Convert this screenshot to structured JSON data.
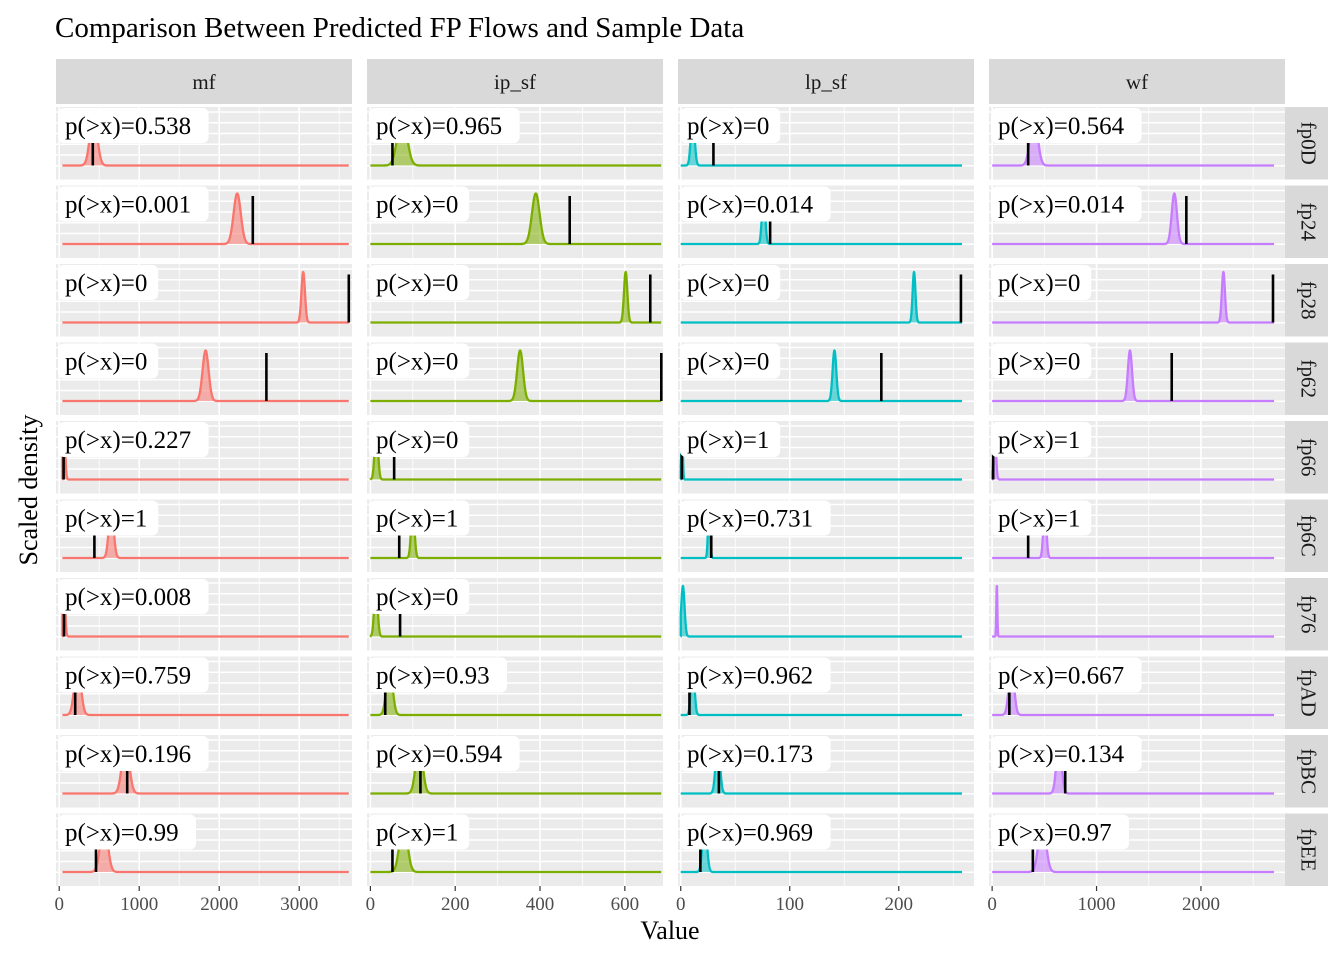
{
  "chart_data": {
    "type": "area",
    "title": "Comparison Between Predicted FP Flows and Sample Data",
    "xlabel": "Value",
    "ylabel": "Scaled density",
    "grid": true,
    "colors": {
      "mf": "#F8766D",
      "ip_sf": "#7CAE00",
      "lp_sf": "#00BFC4",
      "wf": "#C77CFF"
    },
    "columns": [
      {
        "key": "mf",
        "label": "mf",
        "xlim": [
          -40,
          3660
        ],
        "ticks": [
          0,
          1000,
          2000,
          3000
        ],
        "tick_labels": [
          "0",
          "1000",
          "2000",
          "3000"
        ],
        "baseline_start": 40
      },
      {
        "key": "ip_sf",
        "label": "ip_sf",
        "xlim": [
          -8,
          690
        ],
        "ticks": [
          0,
          200,
          400,
          600
        ],
        "tick_labels": [
          "0",
          "200",
          "400",
          "600"
        ],
        "baseline_start": 0
      },
      {
        "key": "lp_sf",
        "label": "lp_sf",
        "xlim": [
          -2.5,
          269
        ],
        "ticks": [
          0,
          100,
          200
        ],
        "tick_labels": [
          "0",
          "100",
          "200"
        ],
        "baseline_start": 0
      },
      {
        "key": "wf",
        "label": "wf",
        "xlim": [
          -30,
          2805
        ],
        "ticks": [
          0,
          1000,
          2000
        ],
        "tick_labels": [
          "0",
          "1000",
          "2000"
        ],
        "baseline_start": 0
      }
    ],
    "rows": [
      "fp0D",
      "fp24",
      "fp28",
      "fp62",
      "fp66",
      "fp6C",
      "fp76",
      "fpAD",
      "fpBC",
      "fpEE"
    ],
    "panels": [
      [
        {
          "mean": 430,
          "sd": 45,
          "obs": 420,
          "p_label": "p(>x)=0.538",
          "x_end": 3620
        },
        {
          "mean": 2225,
          "sd": 45,
          "obs": 2420,
          "p_label": "p(>x)=0.001",
          "x_end": 3620
        },
        {
          "mean": 3050,
          "sd": 22,
          "obs": 3620,
          "p_label": "p(>x)=0",
          "x_end": 3620
        },
        {
          "mean": 1830,
          "sd": 38,
          "obs": 2590,
          "p_label": "p(>x)=0",
          "x_end": 3620
        },
        {
          "mean": 60,
          "sd": 15,
          "obs": 55,
          "p_label": "p(>x)=0.227",
          "x_end": 3620
        },
        {
          "mean": 650,
          "sd": 30,
          "obs": 440,
          "p_label": "p(>x)=1",
          "x_end": 3620
        },
        {
          "mean": 60,
          "sd": 15,
          "obs": 60,
          "p_label": "p(>x)=0.008",
          "x_end": 3620
        },
        {
          "mean": 230,
          "sd": 40,
          "obs": 200,
          "p_label": "p(>x)=0.759",
          "x_end": 3620
        },
        {
          "mean": 830,
          "sd": 45,
          "obs": 850,
          "p_label": "p(>x)=0.196",
          "x_end": 3620
        },
        {
          "mean": 560,
          "sd": 45,
          "obs": 460,
          "p_label": "p(>x)=0.99",
          "x_end": 3620
        }
      ],
      [
        {
          "mean": 75,
          "sd": 11,
          "obs": 52,
          "p_label": "p(>x)=0.965",
          "x_end": 686
        },
        {
          "mean": 390,
          "sd": 9,
          "obs": 470,
          "p_label": "p(>x)=0",
          "x_end": 686
        },
        {
          "mean": 602,
          "sd": 4,
          "obs": 660,
          "p_label": "p(>x)=0",
          "x_end": 686
        },
        {
          "mean": 353,
          "sd": 7,
          "obs": 686,
          "p_label": "p(>x)=0",
          "x_end": 686
        },
        {
          "mean": 14,
          "sd": 4,
          "obs": 56,
          "p_label": "p(>x)=0",
          "x_end": 686
        },
        {
          "mean": 100,
          "sd": 4,
          "obs": 68,
          "p_label": "p(>x)=1",
          "x_end": 686
        },
        {
          "mean": 13,
          "sd": 4,
          "obs": 70,
          "p_label": "p(>x)=0",
          "x_end": 686
        },
        {
          "mean": 45,
          "sd": 7,
          "obs": 35,
          "p_label": "p(>x)=0.93",
          "x_end": 686
        },
        {
          "mean": 115,
          "sd": 8,
          "obs": 118,
          "p_label": "p(>x)=0.594",
          "x_end": 686
        },
        {
          "mean": 78,
          "sd": 9,
          "obs": 52,
          "p_label": "p(>x)=1",
          "x_end": 686
        }
      ],
      [
        {
          "mean": 11,
          "sd": 1.7,
          "obs": 30,
          "p_label": "p(>x)=0",
          "x_end": 258
        },
        {
          "mean": 76,
          "sd": 1.5,
          "obs": 82,
          "p_label": "p(>x)=0.014",
          "x_end": 258
        },
        {
          "mean": 214,
          "sd": 1.3,
          "obs": 257,
          "p_label": "p(>x)=0",
          "x_end": 258
        },
        {
          "mean": 141,
          "sd": 1.7,
          "obs": 184,
          "p_label": "p(>x)=0",
          "x_end": 258
        },
        {
          "mean": 1.2,
          "sd": 0.7,
          "obs": 1,
          "p_label": "p(>x)=1",
          "x_end": 258
        },
        {
          "mean": 26,
          "sd": 1.0,
          "obs": 28,
          "p_label": "p(>x)=0.731",
          "x_end": 258
        },
        {
          "mean": 2,
          "sd": 1.5,
          "obs": null,
          "p_label": "",
          "x_end": 258
        },
        {
          "mean": 11,
          "sd": 1.6,
          "obs": 8,
          "p_label": "p(>x)=0.962",
          "x_end": 258
        },
        {
          "mean": 34,
          "sd": 2.0,
          "obs": 35,
          "p_label": "p(>x)=0.173",
          "x_end": 258
        },
        {
          "mean": 22,
          "sd": 2.0,
          "obs": 18,
          "p_label": "p(>x)=0.969",
          "x_end": 258
        }
      ],
      [
        {
          "mean": 400,
          "sd": 35,
          "obs": 345,
          "p_label": "p(>x)=0.564",
          "x_end": 2700
        },
        {
          "mean": 1745,
          "sd": 25,
          "obs": 1860,
          "p_label": "p(>x)=0.014",
          "x_end": 2700
        },
        {
          "mean": 2215,
          "sd": 15,
          "obs": 2690,
          "p_label": "p(>x)=0",
          "x_end": 2700
        },
        {
          "mean": 1320,
          "sd": 20,
          "obs": 1720,
          "p_label": "p(>x)=0",
          "x_end": 2700
        },
        {
          "mean": 25,
          "sd": 12,
          "obs": 10,
          "p_label": "p(>x)=1",
          "x_end": 2700
        },
        {
          "mean": 505,
          "sd": 15,
          "obs": 345,
          "p_label": "p(>x)=1",
          "x_end": 2700
        },
        {
          "mean": 45,
          "sd": 5,
          "obs": null,
          "p_label": "",
          "x_end": 2700
        },
        {
          "mean": 185,
          "sd": 25,
          "obs": 165,
          "p_label": "p(>x)=0.667",
          "x_end": 2700
        },
        {
          "mean": 640,
          "sd": 25,
          "obs": 700,
          "p_label": "p(>x)=0.134",
          "x_end": 2700
        },
        {
          "mean": 480,
          "sd": 35,
          "obs": 390,
          "p_label": "p(>x)=0.97",
          "x_end": 2700
        }
      ]
    ]
  }
}
